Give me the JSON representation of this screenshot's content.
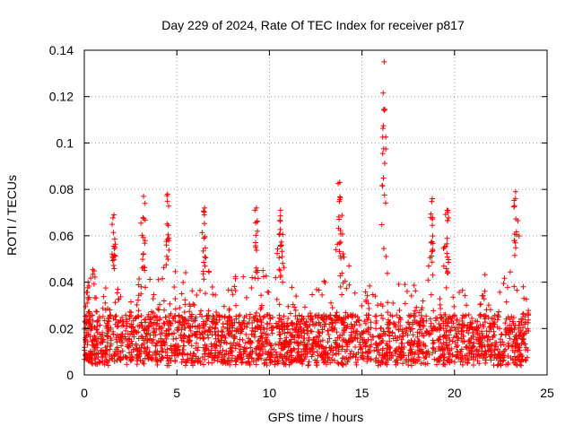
{
  "chart_data": {
    "type": "scatter",
    "title": "Day 229 of 2024, Rate Of TEC Index for receiver p817",
    "xlabel": "GPS time / hours",
    "ylabel": "ROTI / TECUs",
    "xlim": [
      0,
      25
    ],
    "ylim": [
      0,
      0.14
    ],
    "grid": true,
    "marker": "plus",
    "series_color": "#ff0000",
    "x_ticks": [
      {
        "value": 0,
        "label": "0"
      },
      {
        "value": 5,
        "label": "5"
      },
      {
        "value": 10,
        "label": "10"
      },
      {
        "value": 15,
        "label": "15"
      },
      {
        "value": 20,
        "label": "20"
      },
      {
        "value": 25,
        "label": "25"
      }
    ],
    "y_ticks": [
      {
        "value": 0,
        "label": "0"
      },
      {
        "value": 0.02,
        "label": "0.02"
      },
      {
        "value": 0.04,
        "label": "0.04"
      },
      {
        "value": 0.06,
        "label": "0.06"
      },
      {
        "value": 0.08,
        "label": "0.08"
      },
      {
        "value": 0.1,
        "label": "0.1"
      },
      {
        "value": 0.12,
        "label": "0.12"
      },
      {
        "value": 0.14,
        "label": "0.14"
      }
    ],
    "x_range_observed": [
      0.0,
      24.0
    ],
    "peaks": [
      {
        "x": 0.2,
        "y": 0.04
      },
      {
        "x": 1.6,
        "y": 0.069
      },
      {
        "x": 3.2,
        "y": 0.077
      },
      {
        "x": 4.5,
        "y": 0.078
      },
      {
        "x": 6.5,
        "y": 0.072
      },
      {
        "x": 9.3,
        "y": 0.072
      },
      {
        "x": 10.6,
        "y": 0.071
      },
      {
        "x": 13.8,
        "y": 0.083
      },
      {
        "x": 16.2,
        "y": 0.135
      },
      {
        "x": 18.8,
        "y": 0.076
      },
      {
        "x": 19.6,
        "y": 0.071
      },
      {
        "x": 23.3,
        "y": 0.079
      }
    ]
  }
}
